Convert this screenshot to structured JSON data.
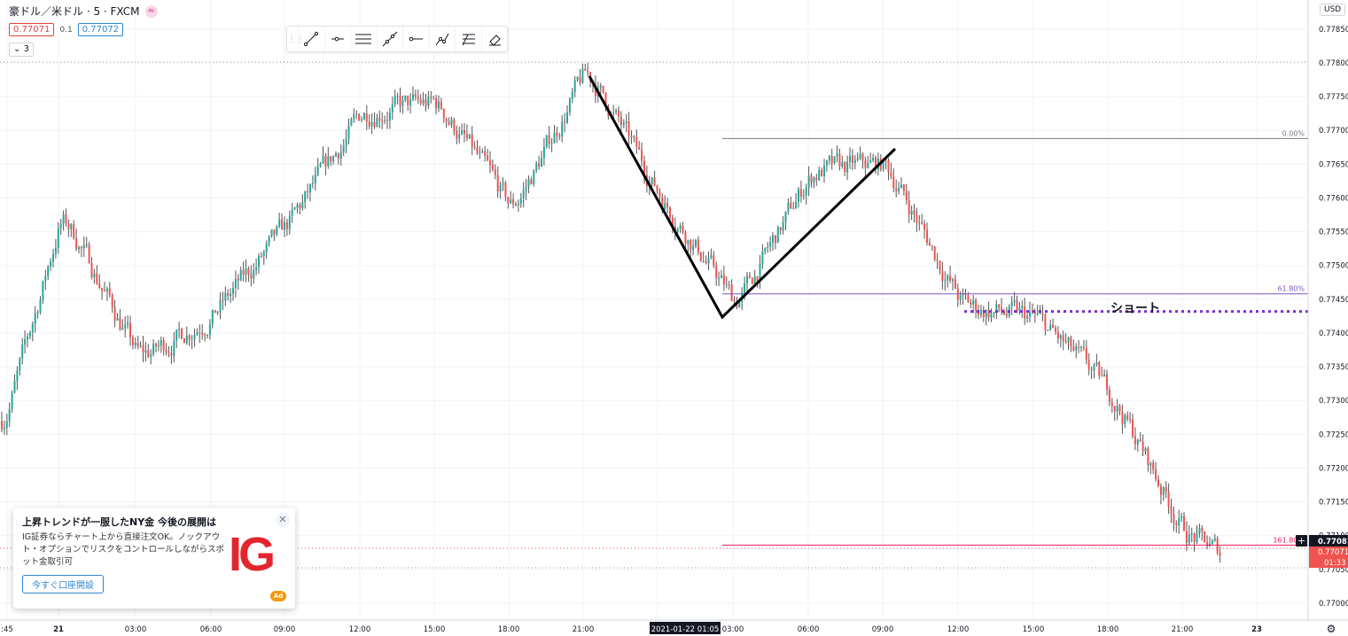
{
  "legend": {
    "symbol_title": "豪ドル／米ドル · 5 · FXCM",
    "sell_price": "0.77071",
    "spread": "0.1",
    "buy_price": "0.77072",
    "indicator_count": "3"
  },
  "toolbar": {
    "tools": [
      "trend-line-icon",
      "horizontal-ray-icon",
      "parallel-channel-icon",
      "extended-line-icon",
      "horizontal-line-icon",
      "path-icon",
      "fib-retracement-icon",
      "eraser-icon"
    ]
  },
  "currency_badge": "USD",
  "price_scale": {
    "ticks": [
      "0.77850",
      "0.77800",
      "0.77750",
      "0.77700",
      "0.77650",
      "0.77600",
      "0.77550",
      "0.77500",
      "0.77450",
      "0.77400",
      "0.77350",
      "0.77300",
      "0.77250",
      "0.77200",
      "0.77150",
      "0.77100",
      "0.77050",
      "0.77000"
    ],
    "last_price_label": "0.77081",
    "sell_price_label": "0.77071",
    "countdown_label": "01:33"
  },
  "time_scale": {
    "ticks": [
      ":45",
      "21",
      "03:00",
      "06:00",
      "09:00",
      "12:00",
      "15:00",
      "18:00",
      "21:00",
      "03:00",
      "06:00",
      "09:00",
      "12:00",
      "15:00",
      "18:00",
      "21:00",
      "23"
    ],
    "crosshair_label": "2021-01-22  01:05"
  },
  "drawings": {
    "fib_levels": [
      {
        "label": "0.00%",
        "color": "#787b86"
      },
      {
        "label": "61.80%",
        "color": "#7e57c2"
      },
      {
        "label": "161.80%",
        "color": "#e91e63"
      }
    ],
    "annotation": "ショート"
  },
  "colors": {
    "up": "#26a69a",
    "down": "#ef5350",
    "wick": "#555555",
    "grid": "#f0f3fa"
  },
  "chart_data": {
    "type": "candlestick",
    "symbol": "AUDUSD",
    "timeframe": "5",
    "ylim": [
      0.76975,
      0.7788
    ],
    "x": [
      "2021-01-20 20:45",
      "2021-01-21 00:00",
      "2021-01-21 03:00",
      "2021-01-21 06:00",
      "2021-01-21 09:00",
      "2021-01-21 12:00",
      "2021-01-21 15:00",
      "2021-01-21 18:00",
      "2021-01-21 21:00",
      "2021-01-22 00:00",
      "2021-01-22 03:00",
      "2021-01-22 06:00",
      "2021-01-22 09:00",
      "2021-01-22 12:00",
      "2021-01-22 15:00",
      "2021-01-22 18:00",
      "2021-01-22 21:00",
      "2021-01-22 23:00"
    ],
    "close": [
      0.7727,
      0.7758,
      0.7736,
      0.7743,
      0.7756,
      0.7773,
      0.7774,
      0.7758,
      0.7779,
      0.776,
      0.7744,
      0.7764,
      0.7765,
      0.7744,
      0.7742,
      0.7731,
      0.771,
      0.77071
    ],
    "fib_prices": [
      0.77688,
      0.77458,
      0.77086
    ],
    "short_entry": 0.77432
  },
  "ad": {
    "title": "上昇トレンドが一服したNY金 今後の展開は",
    "body": "IG証券ならチャート上から直接注文OK。ノックアウト・オプションでリスクをコントロールしながらスポット金取引可",
    "button": "今すぐ口座開設",
    "logo": "IG",
    "badge": "Ad"
  }
}
